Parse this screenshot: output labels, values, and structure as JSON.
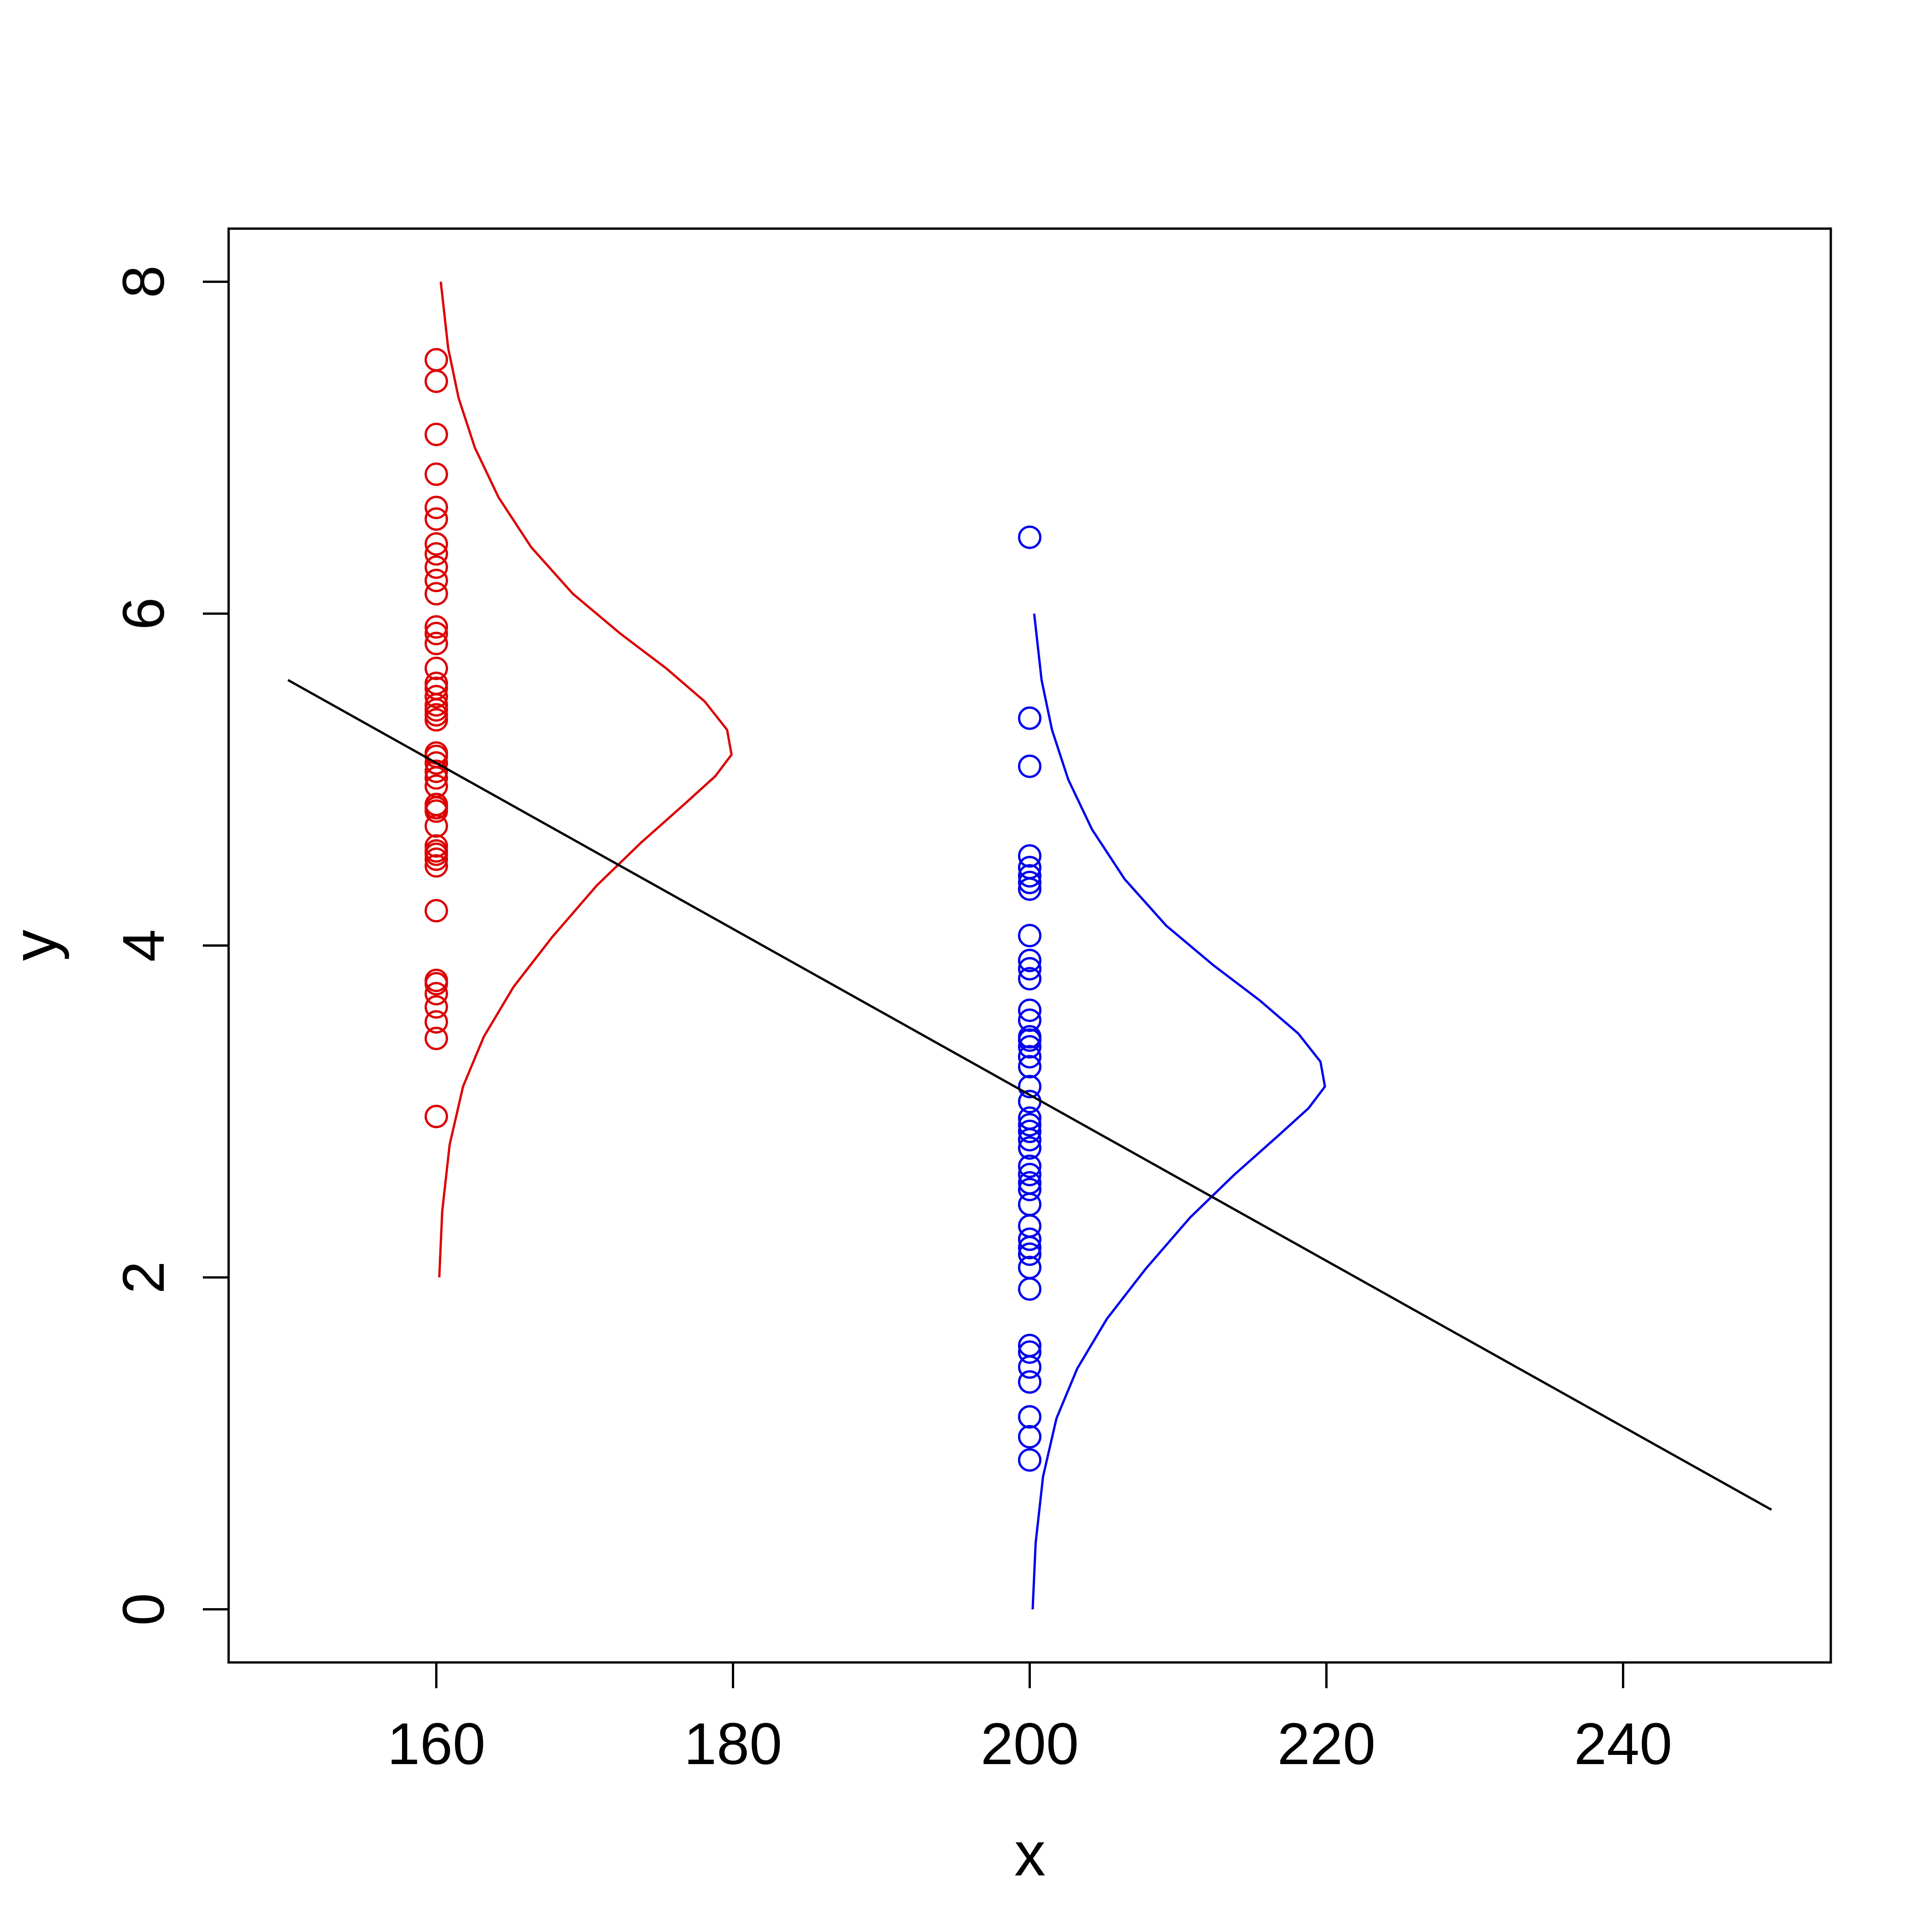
{
  "chart_data": {
    "type": "scatter",
    "title": "",
    "xlabel": "x",
    "ylabel": "y",
    "xlim": [
      146,
      254
    ],
    "ylim": [
      -0.32,
      8.32
    ],
    "xticks": [
      "160",
      "180",
      "200",
      "220",
      "240"
    ],
    "yticks": [
      "0",
      "2",
      "4",
      "6",
      "8"
    ],
    "grid": false,
    "legend": "none",
    "series": [
      {
        "kind": "points",
        "color": "#dd0000",
        "x": 160,
        "y": [
          2.97,
          3.44,
          3.54,
          3.63,
          3.71,
          3.77,
          3.79,
          4.21,
          4.48,
          4.52,
          4.55,
          4.57,
          4.6,
          4.72,
          4.81,
          4.83,
          4.85,
          4.96,
          5.01,
          5.05,
          5.1,
          5.14,
          5.16,
          5.36,
          5.39,
          5.42,
          5.45,
          5.5,
          5.55,
          5.58,
          5.67,
          5.82,
          5.88,
          5.92,
          6.12,
          6.2,
          6.28,
          6.36,
          6.42,
          6.57,
          6.64,
          6.84,
          7.08,
          7.4,
          7.53
        ]
      },
      {
        "kind": "points",
        "color": "#0000ee",
        "x": 200,
        "y": [
          0.9,
          1.04,
          1.16,
          1.37,
          1.46,
          1.55,
          1.59,
          1.93,
          2.06,
          2.14,
          2.18,
          2.23,
          2.31,
          2.44,
          2.53,
          2.57,
          2.62,
          2.67,
          2.78,
          2.83,
          2.88,
          2.92,
          2.96,
          3.06,
          3.15,
          3.27,
          3.33,
          3.39,
          3.43,
          3.45,
          3.55,
          3.61,
          3.8,
          3.86,
          3.91,
          4.06,
          4.34,
          4.38,
          4.42,
          4.47,
          4.54,
          5.08,
          5.37,
          6.46
        ]
      },
      {
        "kind": "curve",
        "color": "#dd0000",
        "description_free": true,
        "points": [
          [
            160.2,
            2.0
          ],
          [
            160.4,
            2.4
          ],
          [
            160.9,
            2.8
          ],
          [
            161.8,
            3.15
          ],
          [
            163.2,
            3.45
          ],
          [
            165.2,
            3.75
          ],
          [
            167.8,
            4.05
          ],
          [
            170.8,
            4.36
          ],
          [
            173.8,
            4.62
          ],
          [
            176.7,
            4.85
          ],
          [
            178.8,
            5.02
          ],
          [
            179.9,
            5.15
          ],
          [
            179.6,
            5.3
          ],
          [
            178.1,
            5.47
          ],
          [
            175.5,
            5.67
          ],
          [
            172.4,
            5.88
          ],
          [
            169.2,
            6.12
          ],
          [
            166.4,
            6.4
          ],
          [
            164.2,
            6.7
          ],
          [
            162.6,
            7.0
          ],
          [
            161.5,
            7.3
          ],
          [
            160.8,
            7.6
          ],
          [
            160.3,
            8.0
          ]
        ]
      },
      {
        "kind": "curve",
        "color": "#0000ee",
        "points": [
          [
            200.2,
            0.0
          ],
          [
            200.4,
            0.4
          ],
          [
            200.9,
            0.8
          ],
          [
            201.8,
            1.15
          ],
          [
            203.2,
            1.45
          ],
          [
            205.2,
            1.75
          ],
          [
            207.8,
            2.05
          ],
          [
            210.8,
            2.36
          ],
          [
            213.8,
            2.62
          ],
          [
            216.7,
            2.85
          ],
          [
            218.8,
            3.02
          ],
          [
            219.9,
            3.15
          ],
          [
            219.6,
            3.3
          ],
          [
            218.1,
            3.47
          ],
          [
            215.5,
            3.67
          ],
          [
            212.4,
            3.88
          ],
          [
            209.2,
            4.12
          ],
          [
            206.4,
            4.4
          ],
          [
            204.2,
            4.7
          ],
          [
            202.6,
            5.0
          ],
          [
            201.5,
            5.3
          ],
          [
            200.8,
            5.6
          ],
          [
            200.3,
            6.0
          ]
        ]
      },
      {
        "kind": "line",
        "color": "#000000",
        "x": [
          150,
          250
        ],
        "y": [
          5.6,
          0.6
        ]
      }
    ]
  }
}
